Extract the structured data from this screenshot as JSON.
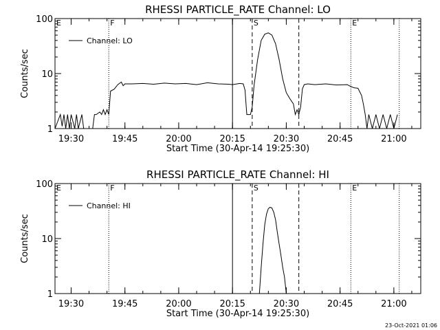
{
  "footer": {
    "timestamp": "23-Oct-2021 01:06"
  },
  "chart_data": [
    {
      "type": "line",
      "title": "RHESSI PARTICLE_RATE Channel: LO",
      "xlabel": "Start Time (30-Apr-14 19:25:30)",
      "ylabel": "Counts/sec",
      "yscale": "log",
      "ylim": [
        1,
        100
      ],
      "xlim": [
        "19:25:30",
        "21:07:30"
      ],
      "x_ticks": [
        "19:30",
        "19:45",
        "20:00",
        "20:15",
        "20:30",
        "20:45",
        "21:00"
      ],
      "y_ticks": [
        "1",
        "10",
        "100"
      ],
      "legend": {
        "entries": [
          "Channel: LO"
        ],
        "position": "top-left"
      },
      "markers": [
        {
          "time": "19:40:30",
          "label": "F",
          "style": "dotted"
        },
        {
          "time": "20:15:00",
          "label": "",
          "style": "solid"
        },
        {
          "time": "20:20:30",
          "label": "S",
          "style": "dashed"
        },
        {
          "time": "20:33:30",
          "label": "",
          "style": "dashed"
        },
        {
          "time": "20:48:00",
          "label": "E",
          "style": "dotted"
        },
        {
          "time": "21:01:30",
          "label": "",
          "style": "dotted"
        }
      ],
      "corner_label": "E",
      "series": [
        {
          "name": "Channel: LO",
          "x": [
            "19:25:30",
            "19:27:00",
            "19:27:30",
            "19:28:00",
            "19:28:30",
            "19:29:00",
            "19:29:30",
            "19:30:00",
            "19:31:00",
            "19:31:30",
            "19:32:00",
            "19:33:00",
            "19:33:30",
            "19:34:00",
            "19:35:00",
            "19:36:00",
            "19:36:30",
            "19:37:00",
            "19:38:00",
            "19:38:30",
            "19:39:00",
            "19:39:30",
            "19:40:00",
            "19:40:30",
            "19:41:00",
            "19:42:00",
            "19:43:00",
            "19:44:00",
            "19:44:30",
            "19:45:00",
            "19:47:00",
            "19:50:00",
            "19:53:00",
            "19:56:00",
            "19:59:00",
            "20:02:00",
            "20:05:00",
            "20:08:00",
            "20:11:00",
            "20:14:00",
            "20:15:00",
            "20:17:00",
            "20:18:00",
            "20:18:30",
            "20:19:00",
            "20:20:00",
            "20:20:30",
            "20:21:00",
            "20:22:00",
            "20:23:00",
            "20:24:00",
            "20:25:00",
            "20:26:00",
            "20:27:00",
            "20:28:00",
            "20:29:00",
            "20:30:00",
            "20:31:00",
            "20:32:00",
            "20:32:30",
            "20:33:00",
            "20:33:30",
            "20:34:00",
            "20:34:30",
            "20:35:00",
            "20:36:00",
            "20:38:00",
            "20:41:00",
            "20:44:00",
            "20:47:00",
            "20:48:00",
            "20:49:00",
            "20:50:00",
            "20:51:00",
            "20:51:30",
            "20:52:00",
            "20:52:30",
            "20:53:00",
            "20:54:00",
            "20:55:00",
            "20:56:00",
            "20:57:00",
            "20:58:00",
            "20:59:00",
            "21:00:00",
            "21:01:00"
          ],
          "y": [
            1,
            1.8,
            1.1,
            1.8,
            1,
            1.8,
            1,
            1.8,
            1,
            1.8,
            1,
            1.8,
            1,
            1,
            1,
            1,
            1.8,
            1.8,
            2,
            1.8,
            2.2,
            1.8,
            2.2,
            1.8,
            4.8,
            5.2,
            6.3,
            7,
            6,
            6.5,
            6.5,
            6.6,
            6.4,
            6.7,
            6.5,
            6.6,
            6.3,
            6.8,
            6.5,
            6.4,
            6.3,
            6.6,
            6.5,
            5,
            1.8,
            1.8,
            2.5,
            6,
            18,
            40,
            52,
            55,
            50,
            35,
            18,
            8,
            4.5,
            3.5,
            2.8,
            1.8,
            2.2,
            1.8,
            2.5,
            5.3,
            6.3,
            6.5,
            6.3,
            6.5,
            6.2,
            6.3,
            5.8,
            5.5,
            5.4,
            4,
            2.8,
            1.8,
            1,
            1.8,
            1,
            1.8,
            1,
            1.8,
            1,
            1.8,
            1,
            1.8
          ]
        }
      ]
    },
    {
      "type": "line",
      "title": "RHESSI PARTICLE_RATE Channel: HI",
      "xlabel": "Start Time (30-Apr-14 19:25:30)",
      "ylabel": "Counts/sec",
      "yscale": "log",
      "ylim": [
        1,
        100
      ],
      "xlim": [
        "19:25:30",
        "21:07:30"
      ],
      "x_ticks": [
        "19:30",
        "19:45",
        "20:00",
        "20:15",
        "20:30",
        "20:45",
        "21:00"
      ],
      "y_ticks": [
        "1",
        "10",
        "100"
      ],
      "legend": {
        "entries": [
          "Channel: HI"
        ],
        "position": "top-left"
      },
      "markers": [
        {
          "time": "19:40:30",
          "label": "F",
          "style": "dotted"
        },
        {
          "time": "20:15:00",
          "label": "",
          "style": "solid"
        },
        {
          "time": "20:20:30",
          "label": "S",
          "style": "dashed"
        },
        {
          "time": "20:33:30",
          "label": "",
          "style": "dashed"
        },
        {
          "time": "20:48:00",
          "label": "E",
          "style": "dotted"
        },
        {
          "time": "21:01:30",
          "label": "",
          "style": "dotted"
        }
      ],
      "corner_label": "E",
      "series": [
        {
          "name": "Channel: HI",
          "x": [
            "20:22:30",
            "20:23:00",
            "20:23:30",
            "20:24:00",
            "20:24:30",
            "20:25:00",
            "20:25:30",
            "20:26:00",
            "20:26:30",
            "20:27:00",
            "20:27:30",
            "20:28:00",
            "20:28:30",
            "20:29:00",
            "20:29:30",
            "20:30:00"
          ],
          "y": [
            1,
            3,
            8,
            18,
            28,
            35,
            37,
            36,
            30,
            22,
            13,
            8,
            5,
            3,
            2,
            1
          ]
        }
      ]
    }
  ]
}
